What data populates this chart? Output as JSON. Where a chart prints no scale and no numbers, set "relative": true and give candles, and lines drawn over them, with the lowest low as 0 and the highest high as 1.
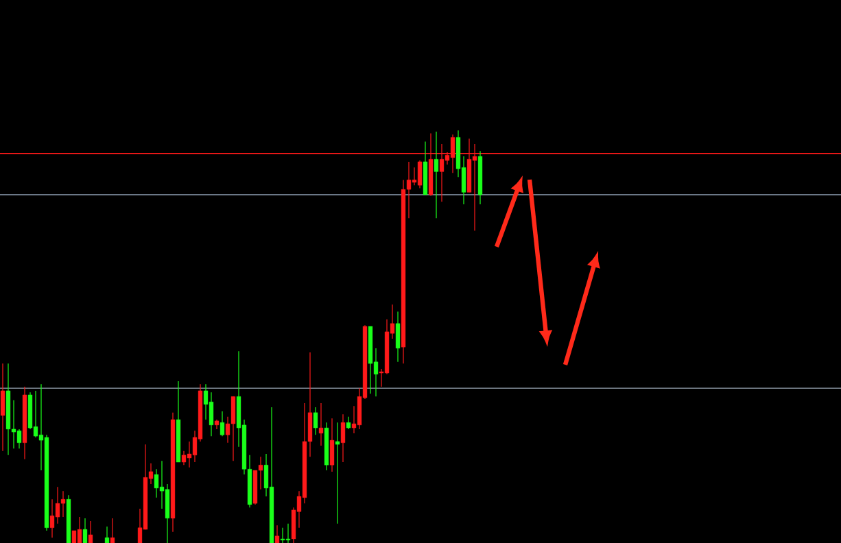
{
  "chart_data": {
    "type": "candlestick",
    "relative": true,
    "categories": [
      null,
      null,
      null,
      null,
      null,
      null,
      null,
      null,
      null,
      null,
      null,
      null,
      null,
      null,
      null,
      null,
      null,
      null,
      null,
      null,
      null,
      null,
      null,
      null,
      null,
      null,
      null,
      null,
      null,
      null,
      null,
      null,
      null,
      null,
      null,
      null,
      null,
      null,
      null,
      null,
      null,
      null,
      null,
      null,
      null,
      null,
      null,
      null,
      null,
      null,
      null,
      null,
      null,
      null,
      null,
      null,
      null,
      null,
      null,
      null,
      null,
      null,
      null,
      null,
      null,
      null,
      null,
      null,
      null,
      null,
      null,
      null,
      null,
      null,
      null,
      null,
      null,
      null,
      null,
      null,
      null,
      null,
      null,
      null,
      null,
      null,
      null,
      null
    ],
    "ohlc": [
      [
        0.309,
        0.435,
        0.223,
        0.369
      ],
      [
        0.369,
        0.435,
        0.213,
        0.276
      ],
      [
        0.276,
        0.346,
        0.229,
        0.269
      ],
      [
        0.272,
        0.276,
        0.229,
        0.243
      ],
      [
        0.243,
        0.379,
        0.203,
        0.359
      ],
      [
        0.359,
        0.365,
        0.276,
        0.279
      ],
      [
        0.282,
        0.369,
        0.256,
        0.259
      ],
      [
        0.262,
        0.385,
        0.176,
        0.249
      ],
      [
        0.256,
        0.262,
        0.03,
        0.037
      ],
      [
        0.037,
        0.106,
        0.013,
        0.066
      ],
      [
        0.063,
        0.136,
        0.047,
        0.096
      ],
      [
        0.096,
        0.126,
        0.063,
        0.106
      ],
      [
        0.106,
        0.116,
        0,
        0
      ],
      [
        0,
        0.03,
        0,
        0.03
      ],
      [
        0,
        0.063,
        0,
        0.033
      ],
      [
        0.033,
        0.06,
        0,
        0
      ],
      [
        0,
        0.053,
        0,
        0.02
      ],
      null,
      null,
      [
        0.013,
        0.04,
        0,
        0
      ],
      [
        0,
        0.06,
        0,
        0.013
      ],
      null,
      null,
      null,
      null,
      [
        0,
        0.083,
        0,
        0.037
      ],
      [
        0.033,
        0.239,
        0.033,
        0.159
      ],
      [
        0.156,
        0.193,
        0.143,
        0.173
      ],
      [
        0.166,
        0.179,
        0.11,
        0.133
      ],
      [
        0.136,
        0.199,
        0.083,
        0.126
      ],
      [
        0.13,
        0.143,
        0,
        0.06
      ],
      [
        0.06,
        0.316,
        0.027,
        0.299
      ],
      [
        0.299,
        0.392,
        0.196,
        0.196
      ],
      [
        0.196,
        0.223,
        0.189,
        0.213
      ],
      [
        0.206,
        0.246,
        0.183,
        0.216
      ],
      [
        0.213,
        0.272,
        0.196,
        0.256
      ],
      [
        0.252,
        0.385,
        0.246,
        0.369
      ],
      [
        0.369,
        0.385,
        0.299,
        0.336
      ],
      [
        0.342,
        0.365,
        0.259,
        0.286
      ],
      [
        0.286,
        0.299,
        0.276,
        0.296
      ],
      [
        0.292,
        0.319,
        0.259,
        0.262
      ],
      [
        0.262,
        0.306,
        0.243,
        0.289
      ],
      [
        0.289,
        0.355,
        0.199,
        0.355
      ],
      [
        0.355,
        0.465,
        0.233,
        0.279
      ],
      [
        0.286,
        0.299,
        0.166,
        0.179
      ],
      [
        0.179,
        0.213,
        0.086,
        0.093
      ],
      [
        0.096,
        0.176,
        0.093,
        0.176
      ],
      [
        0.176,
        0.209,
        0.13,
        0.189
      ],
      [
        0.189,
        0.216,
        0.113,
        0.133
      ],
      [
        0.136,
        0.329,
        0,
        0
      ],
      [
        0,
        0.043,
        0,
        0.017
      ],
      [
        0.01,
        0.037,
        0,
        0.007
      ],
      [
        0.01,
        0.047,
        0,
        0.007
      ],
      [
        0.01,
        0.086,
        0,
        0.08
      ],
      [
        0.076,
        0.126,
        0.037,
        0.113
      ],
      [
        0.11,
        0.339,
        0.096,
        0.246
      ],
      [
        0.246,
        0.462,
        0.209,
        0.316
      ],
      [
        0.316,
        0.329,
        0.262,
        0.279
      ],
      [
        0.266,
        0.339,
        0.236,
        0.279
      ],
      [
        0.279,
        0.292,
        0.176,
        0.189
      ],
      [
        0.189,
        0.302,
        0.173,
        0.249
      ],
      [
        0.246,
        0.292,
        0.047,
        0.239
      ],
      [
        0.243,
        0.312,
        0.196,
        0.292
      ],
      [
        0.292,
        0.306,
        0.276,
        0.279
      ],
      [
        0.279,
        0.332,
        0.266,
        0.289
      ],
      [
        0.286,
        0.375,
        0.276,
        0.355
      ],
      [
        0.352,
        0.528,
        0.349,
        0.525
      ],
      [
        0.525,
        0.525,
        0.362,
        0.435
      ],
      [
        0.439,
        0.472,
        0.355,
        0.409
      ],
      [
        0.412,
        0.422,
        0.379,
        0.415
      ],
      [
        0.412,
        0.542,
        0.409,
        0.512
      ],
      [
        0.508,
        0.578,
        0.495,
        0.532
      ],
      [
        0.532,
        0.561,
        0.439,
        0.472
      ],
      [
        0.475,
        0.88,
        0.435,
        0.857
      ],
      [
        0.857,
        0.924,
        0.787,
        0.88
      ],
      [
        0.874,
        0.91,
        0.867,
        0.88
      ],
      [
        0.867,
        0.927,
        0.86,
        0.924
      ],
      [
        0.924,
        0.973,
        0.844,
        0.844
      ],
      [
        0.844,
        0.993,
        0.841,
        0.93
      ],
      [
        0.93,
        0.997,
        0.787,
        0.9
      ],
      [
        0.9,
        0.967,
        0.827,
        0.93
      ],
      [
        0.927,
        0.947,
        0.917,
        0.94
      ],
      [
        0.934,
        0.99,
        0.897,
        0.983
      ],
      [
        0.983,
        1,
        0.887,
        0.907
      ],
      [
        0.91,
        0.937,
        0.821,
        0.85
      ],
      [
        0.85,
        0.98,
        0.85,
        0.93
      ],
      [
        0.927,
        0.967,
        0.757,
        0.937
      ],
      [
        0.937,
        0.95,
        0.821,
        0.844
      ]
    ],
    "colors": [
      "#ff1a1a",
      "#1aff1a",
      "#1aff1a",
      "#1aff1a",
      "#ff1a1a",
      "#1aff1a",
      "#1aff1a",
      "#1aff1a",
      "#1aff1a",
      "#ff1a1a",
      "#ff1a1a",
      "#ff1a1a",
      "#1aff1a",
      "#ff1a1a",
      "#ff1a1a",
      "#1aff1a",
      "#ff1a1a",
      null,
      null,
      "#1aff1a",
      "#ff1a1a",
      null,
      null,
      null,
      null,
      "#ff1a1a",
      "#ff1a1a",
      "#ff1a1a",
      "#1aff1a",
      "#1aff1a",
      "#1aff1a",
      "#ff1a1a",
      "#1aff1a",
      "#ff1a1a",
      "#ff1a1a",
      "#ff1a1a",
      "#ff1a1a",
      "#1aff1a",
      "#1aff1a",
      "#ff1a1a",
      "#1aff1a",
      "#ff1a1a",
      "#ff1a1a",
      "#1aff1a",
      "#1aff1a",
      "#1aff1a",
      "#ff1a1a",
      "#ff1a1a",
      "#1aff1a",
      "#1aff1a",
      "#ff1a1a",
      "#1aff1a",
      "#1aff1a",
      "#ff1a1a",
      "#ff1a1a",
      "#ff1a1a",
      "#ff1a1a",
      "#1aff1a",
      "#ff1a1a",
      "#1aff1a",
      "#ff1a1a",
      "#1aff1a",
      "#ff1a1a",
      "#1aff1a",
      "#ff1a1a",
      "#ff1a1a",
      "#ff1a1a",
      "#1aff1a",
      "#1aff1a",
      "#ff1a1a",
      "#ff1a1a",
      "#ff1a1a",
      "#1aff1a",
      "#ff1a1a",
      "#ff1a1a",
      "#ff1a1a",
      "#ff1a1a",
      "#1aff1a",
      "#ff1a1a",
      "#1aff1a",
      "#ff1a1a",
      "#ff1a1a",
      "#ff1a1a",
      "#1aff1a",
      "#1aff1a",
      "#ff1a1a",
      "#ff1a1a",
      "#1aff1a"
    ],
    "ref_lines": [
      {
        "axis": "y",
        "value": 0.944,
        "color": "#ff1a1a"
      },
      {
        "axis": "y",
        "value": 0.844,
        "color": "#8fa0b4"
      },
      {
        "axis": "y",
        "value": 0.375,
        "color": "#7f8a96"
      }
    ]
  }
}
